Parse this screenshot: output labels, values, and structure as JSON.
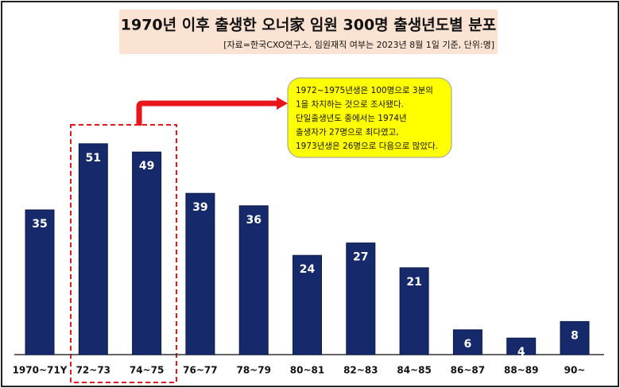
{
  "chart_data": {
    "type": "bar",
    "title": "1970년 이후 출생한 오너家 임원 300명 출생년도별 분포",
    "subtitle": "[자료=한국CXO연구소,  임원재직 여부는 2023년 8월 1일 기준, 단위:명]",
    "annotation": [
      "1972~1975년생은 100명으로 3분의",
      "1을 차지하는 것으로 조사됐다.",
      "단일출생년도 중에서는 1974년",
      "출생자가 27명으로 최다였고,",
      "1973년생은 26명으로 다음으로 많았다."
    ],
    "categories": [
      "1970~71Y",
      "72~73",
      "74~75",
      "76~77",
      "78~79",
      "80~81",
      "82~83",
      "84~85",
      "86~87",
      "88~89",
      "90~"
    ],
    "values": [
      35,
      51,
      49,
      39,
      36,
      24,
      27,
      21,
      6,
      4,
      8
    ],
    "color": "#15296b"
  }
}
